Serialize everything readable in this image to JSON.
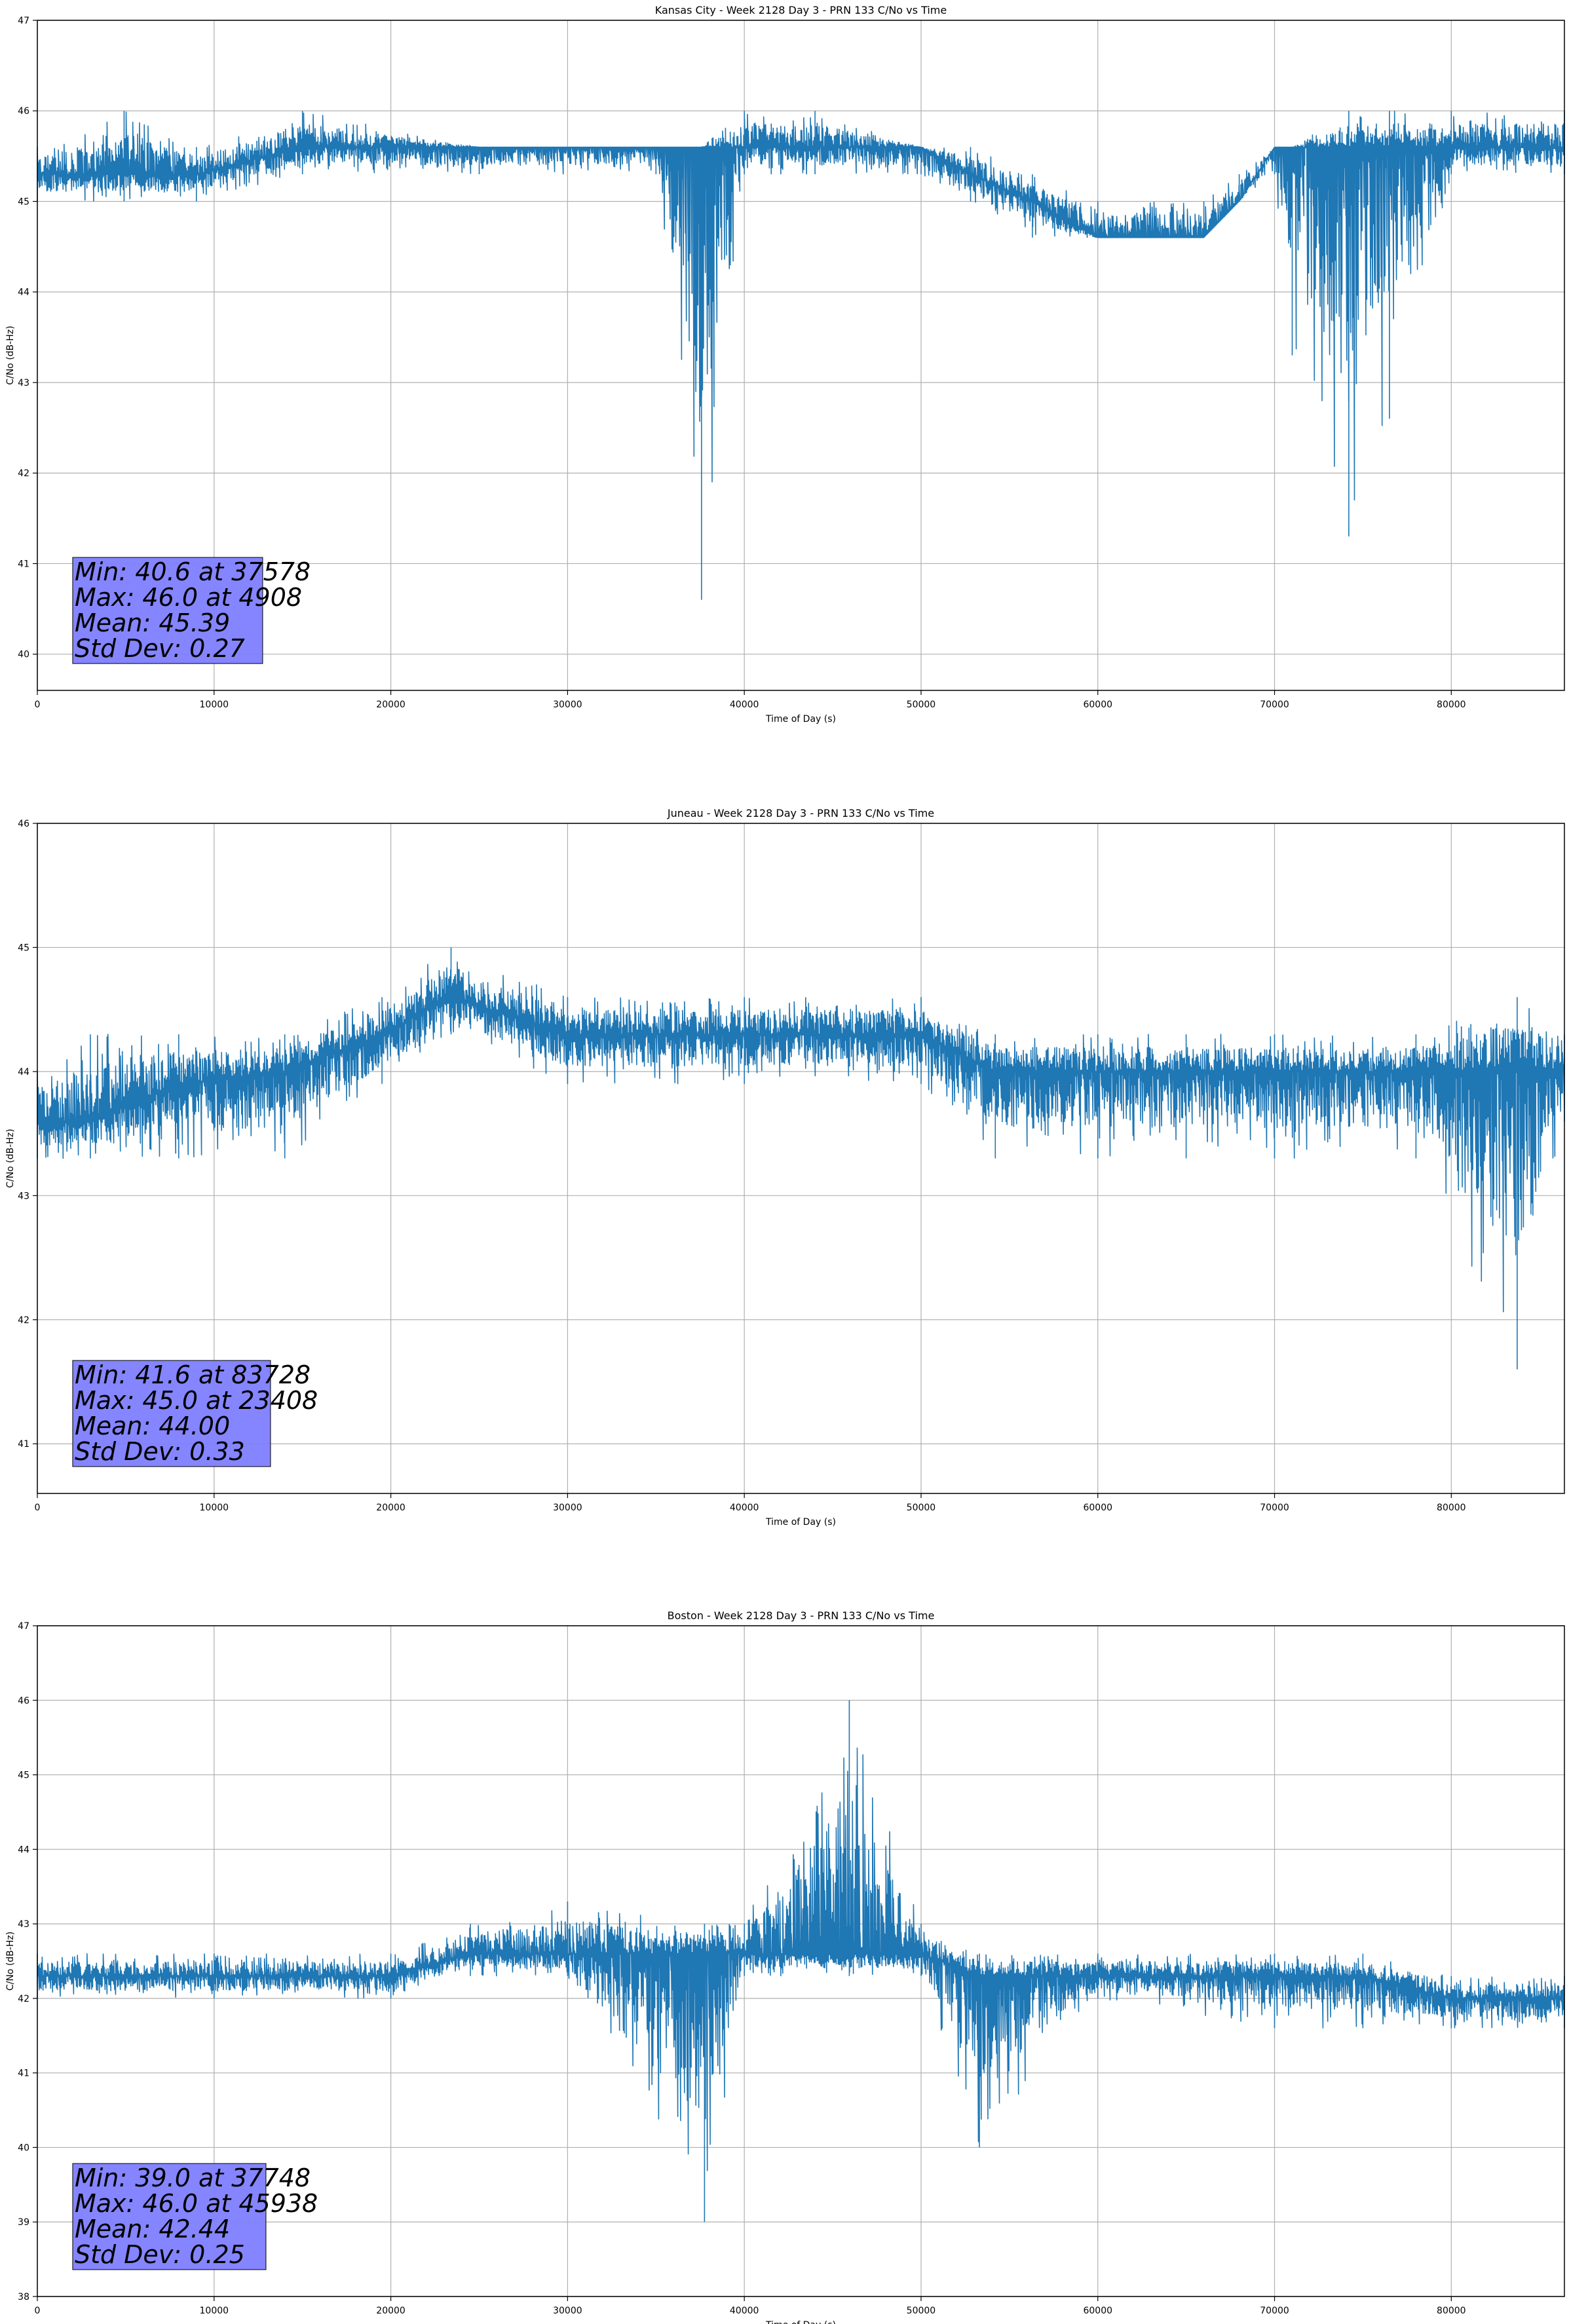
{
  "chart_data": [
    {
      "type": "line",
      "title": "Kansas City - Week 2128 Day 3 - PRN 133 C/No vs Time",
      "xlabel": "Time of Day (s)",
      "ylabel": "C/No (dB-Hz)",
      "xlim": [
        0,
        86400
      ],
      "ylim": [
        39.6,
        47
      ],
      "xticks": [
        0,
        10000,
        20000,
        30000,
        40000,
        50000,
        60000,
        70000,
        80000
      ],
      "yticks": [
        40,
        41,
        42,
        43,
        44,
        45,
        46,
        47
      ],
      "grid": true,
      "series_color": "#1f77b4",
      "stats_box_color": "#8080ff",
      "stats": [
        "Min: 40.6 at 37578",
        "Max: 46.0 at 4908",
        "Mean: 45.39",
        "Std Dev: 0.27"
      ],
      "series": [
        {
          "x": [
            0,
            4908,
            9000,
            15000,
            25000,
            35000,
            37578,
            40000,
            44000,
            50000,
            52800,
            56300,
            60000,
            66000,
            68000,
            70000,
            71000,
            74200,
            76500,
            80000,
            86400
          ],
          "low": [
            45.0,
            45.0,
            45.0,
            45.3,
            45.3,
            45.3,
            40.6,
            45.3,
            45.3,
            45.3,
            45.0,
            44.6,
            44.6,
            44.6,
            45.0,
            45.3,
            43.3,
            41.3,
            42.6,
            45.3,
            45.3
          ],
          "high": [
            45.6,
            46.0,
            45.6,
            46.0,
            45.6,
            45.6,
            45.6,
            46.0,
            46.0,
            45.6,
            45.6,
            45.3,
            45.0,
            45.0,
            45.3,
            45.6,
            45.6,
            46.0,
            46.0,
            46.0,
            46.0
          ],
          "typical": [
            45.3,
            45.3,
            45.3,
            45.6,
            45.6,
            45.6,
            45.6,
            45.6,
            45.6,
            45.6,
            45.3,
            45.0,
            44.6,
            44.6,
            45.0,
            45.6,
            45.6,
            45.6,
            45.6,
            45.6,
            45.6
          ]
        }
      ]
    },
    {
      "type": "line",
      "title": "Juneau - Week 2128 Day 3 - PRN 133 C/No vs Time",
      "xlabel": "Time of Day (s)",
      "ylabel": "C/No (dB-Hz)",
      "xlim": [
        0,
        86400
      ],
      "ylim": [
        40.6,
        46
      ],
      "xticks": [
        0,
        10000,
        20000,
        30000,
        40000,
        50000,
        60000,
        70000,
        80000
      ],
      "yticks": [
        41,
        42,
        43,
        44,
        45,
        46
      ],
      "grid": true,
      "series_color": "#1f77b4",
      "stats_box_color": "#8080ff",
      "stats": [
        "Min: 41.6 at 83728",
        "Max: 45.0 at 23408",
        "Mean: 44.00",
        "Std Dev: 0.33"
      ],
      "series": [
        {
          "x": [
            0,
            3000,
            8000,
            14000,
            19500,
            23408,
            30000,
            40000,
            50000,
            54200,
            60000,
            65000,
            70000,
            78000,
            83728,
            86400
          ],
          "low": [
            43.3,
            43.3,
            43.3,
            43.3,
            43.9,
            44.3,
            43.9,
            43.9,
            43.9,
            43.3,
            43.3,
            43.3,
            43.3,
            43.3,
            41.6,
            43.6
          ],
          "high": [
            44.0,
            44.3,
            44.3,
            44.3,
            44.6,
            45.0,
            44.6,
            44.6,
            44.6,
            44.3,
            44.3,
            44.3,
            44.3,
            44.3,
            44.6,
            44.3
          ],
          "typical": [
            43.6,
            43.6,
            43.9,
            44.0,
            44.3,
            44.6,
            44.3,
            44.3,
            44.3,
            44.0,
            44.0,
            44.0,
            44.0,
            44.0,
            44.0,
            44.0
          ]
        }
      ]
    },
    {
      "type": "line",
      "title": "Boston - Week 2128 Day 3 - PRN 133 C/No vs Time",
      "xlabel": "Time of Day (s)",
      "ylabel": "C/No (dB-Hz)",
      "xlim": [
        0,
        86400
      ],
      "ylim": [
        38,
        47
      ],
      "xticks": [
        0,
        10000,
        20000,
        30000,
        40000,
        50000,
        60000,
        70000,
        80000
      ],
      "yticks": [
        38,
        39,
        40,
        41,
        42,
        43,
        44,
        45,
        46,
        47
      ],
      "grid": true,
      "series_color": "#1f77b4",
      "stats_box_color": "#8080ff",
      "stats": [
        "Min: 39.0 at 37748",
        "Max: 46.0 at 45938",
        "Mean: 42.44",
        "Std Dev: 0.25"
      ],
      "series": [
        {
          "x": [
            0,
            10000,
            20000,
            24500,
            30000,
            37748,
            40000,
            45938,
            50000,
            53300,
            60000,
            70000,
            75000,
            80000,
            86400
          ],
          "low": [
            42.0,
            42.0,
            42.0,
            42.3,
            42.3,
            39.0,
            42.3,
            42.3,
            42.3,
            40.0,
            42.0,
            41.6,
            41.6,
            41.6,
            41.6
          ],
          "high": [
            42.6,
            42.6,
            42.6,
            43.0,
            43.3,
            43.0,
            43.0,
            46.0,
            43.0,
            42.6,
            42.6,
            42.6,
            42.6,
            42.3,
            42.3
          ],
          "typical": [
            42.3,
            42.3,
            42.3,
            42.6,
            42.6,
            42.6,
            42.6,
            42.6,
            42.6,
            42.3,
            42.3,
            42.3,
            42.3,
            42.0,
            42.0
          ]
        }
      ]
    }
  ]
}
